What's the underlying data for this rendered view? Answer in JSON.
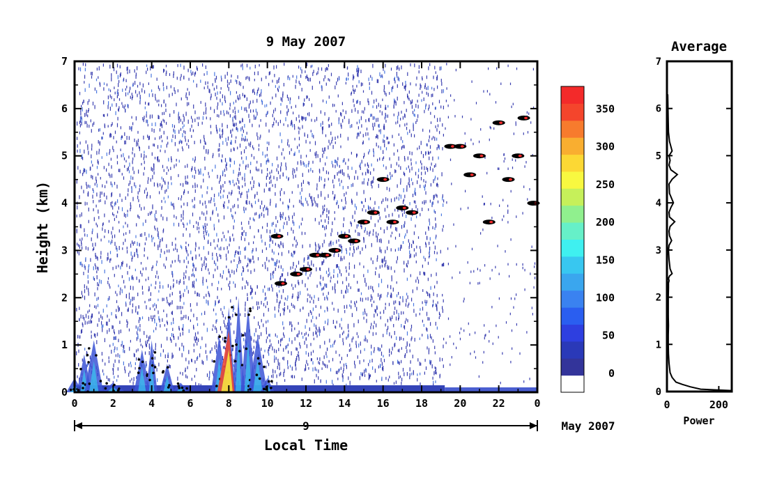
{
  "chart_data": [
    {
      "type": "heatmap",
      "title": "9 May 2007",
      "xlabel": "Local Time",
      "ylabel": "Height (km)",
      "date_label": "9",
      "date_suffix": "May 2007",
      "x_ticks": [
        "0",
        "2",
        "4",
        "6",
        "8",
        "10",
        "12",
        "14",
        "16",
        "18",
        "20",
        "22",
        "0"
      ],
      "y_ticks": [
        "0",
        "1",
        "2",
        "3",
        "4",
        "5",
        "6",
        "7"
      ],
      "xlim": [
        0,
        24
      ],
      "ylim": [
        0,
        7
      ],
      "colorbar": {
        "ticks": [
          "0",
          "50",
          "100",
          "150",
          "200",
          "250",
          "300",
          "350"
        ],
        "range": [
          -25,
          380
        ],
        "colors": [
          "#ffffff",
          "#33349a",
          "#2a39b8",
          "#2e3fe0",
          "#2a5ef0",
          "#3a82f0",
          "#3aa6ee",
          "#38c7f0",
          "#3ff0f0",
          "#66f0c8",
          "#90f08e",
          "#c6f05a",
          "#f8f840",
          "#fcd834",
          "#f9ae30",
          "#f77b2d",
          "#f4452c",
          "#f32a2a"
        ]
      },
      "features": {
        "noise_end_hour": 19.2,
        "boundary_layer": [
          {
            "x": 0.0,
            "y": 0.3
          },
          {
            "x": 0.5,
            "y": 0.8
          },
          {
            "x": 1.0,
            "y": 1.1
          },
          {
            "x": 2.0,
            "y": 0.2
          },
          {
            "x": 3.5,
            "y": 0.9
          },
          {
            "x": 4.0,
            "y": 1.1
          },
          {
            "x": 4.8,
            "y": 0.6
          },
          {
            "x": 5.5,
            "y": 0.2
          },
          {
            "x": 7.5,
            "y": 1.2
          },
          {
            "x": 8.0,
            "y": 1.8
          },
          {
            "x": 8.5,
            "y": 2.0
          },
          {
            "x": 9.0,
            "y": 1.8
          },
          {
            "x": 9.5,
            "y": 1.2
          },
          {
            "x": 10.0,
            "y": 0.3
          }
        ],
        "echo_layers": [
          {
            "x": 10.5,
            "y": 3.3
          },
          {
            "x": 10.7,
            "y": 2.3
          },
          {
            "x": 11.5,
            "y": 2.5
          },
          {
            "x": 12.0,
            "y": 2.6
          },
          {
            "x": 12.5,
            "y": 2.9
          },
          {
            "x": 13.0,
            "y": 2.9
          },
          {
            "x": 13.5,
            "y": 3.0
          },
          {
            "x": 14.0,
            "y": 3.3
          },
          {
            "x": 14.5,
            "y": 3.2
          },
          {
            "x": 15.0,
            "y": 3.6
          },
          {
            "x": 15.5,
            "y": 3.8
          },
          {
            "x": 16.0,
            "y": 4.5
          },
          {
            "x": 16.5,
            "y": 3.6
          },
          {
            "x": 17.0,
            "y": 3.9
          },
          {
            "x": 17.5,
            "y": 3.8
          },
          {
            "x": 19.5,
            "y": 5.2
          },
          {
            "x": 20.0,
            "y": 5.2
          },
          {
            "x": 20.5,
            "y": 4.6
          },
          {
            "x": 21.0,
            "y": 5.0
          },
          {
            "x": 21.5,
            "y": 3.6
          },
          {
            "x": 22.0,
            "y": 5.7
          },
          {
            "x": 22.5,
            "y": 4.5
          },
          {
            "x": 23.0,
            "y": 5.0
          },
          {
            "x": 23.3,
            "y": 5.8
          },
          {
            "x": 23.8,
            "y": 4.0
          }
        ]
      }
    },
    {
      "type": "line",
      "title": "Average",
      "xlabel": "Power",
      "x_ticks": [
        "0",
        "200"
      ],
      "y_ticks": [
        "0",
        "1",
        "2",
        "3",
        "4",
        "5",
        "6",
        "7"
      ],
      "xlim": [
        0,
        250
      ],
      "ylim": [
        0,
        7
      ],
      "series": [
        {
          "x": [
            250,
            130,
            90,
            60,
            35,
            20,
            12,
            8,
            6,
            5,
            5,
            6,
            5,
            5,
            5,
            6,
            6,
            8,
            6,
            10,
            20,
            12,
            8,
            6,
            8,
            18,
            10,
            8,
            12,
            30,
            10,
            8,
            15,
            25,
            10,
            8,
            20,
            40,
            15,
            8,
            12,
            8,
            20,
            10,
            6,
            5,
            4,
            3
          ],
          "y": [
            0.02,
            0.05,
            0.1,
            0.15,
            0.2,
            0.3,
            0.4,
            0.6,
            0.8,
            1.0,
            1.2,
            1.4,
            1.6,
            1.8,
            2.0,
            2.2,
            2.3,
            2.35,
            2.4,
            2.45,
            2.5,
            2.6,
            2.8,
            3.0,
            3.1,
            3.2,
            3.3,
            3.4,
            3.5,
            3.6,
            3.7,
            3.8,
            3.9,
            4.0,
            4.2,
            4.4,
            4.5,
            4.6,
            4.7,
            4.8,
            4.9,
            5.0,
            5.1,
            5.3,
            5.5,
            5.7,
            6.0,
            6.3
          ]
        }
      ]
    }
  ]
}
